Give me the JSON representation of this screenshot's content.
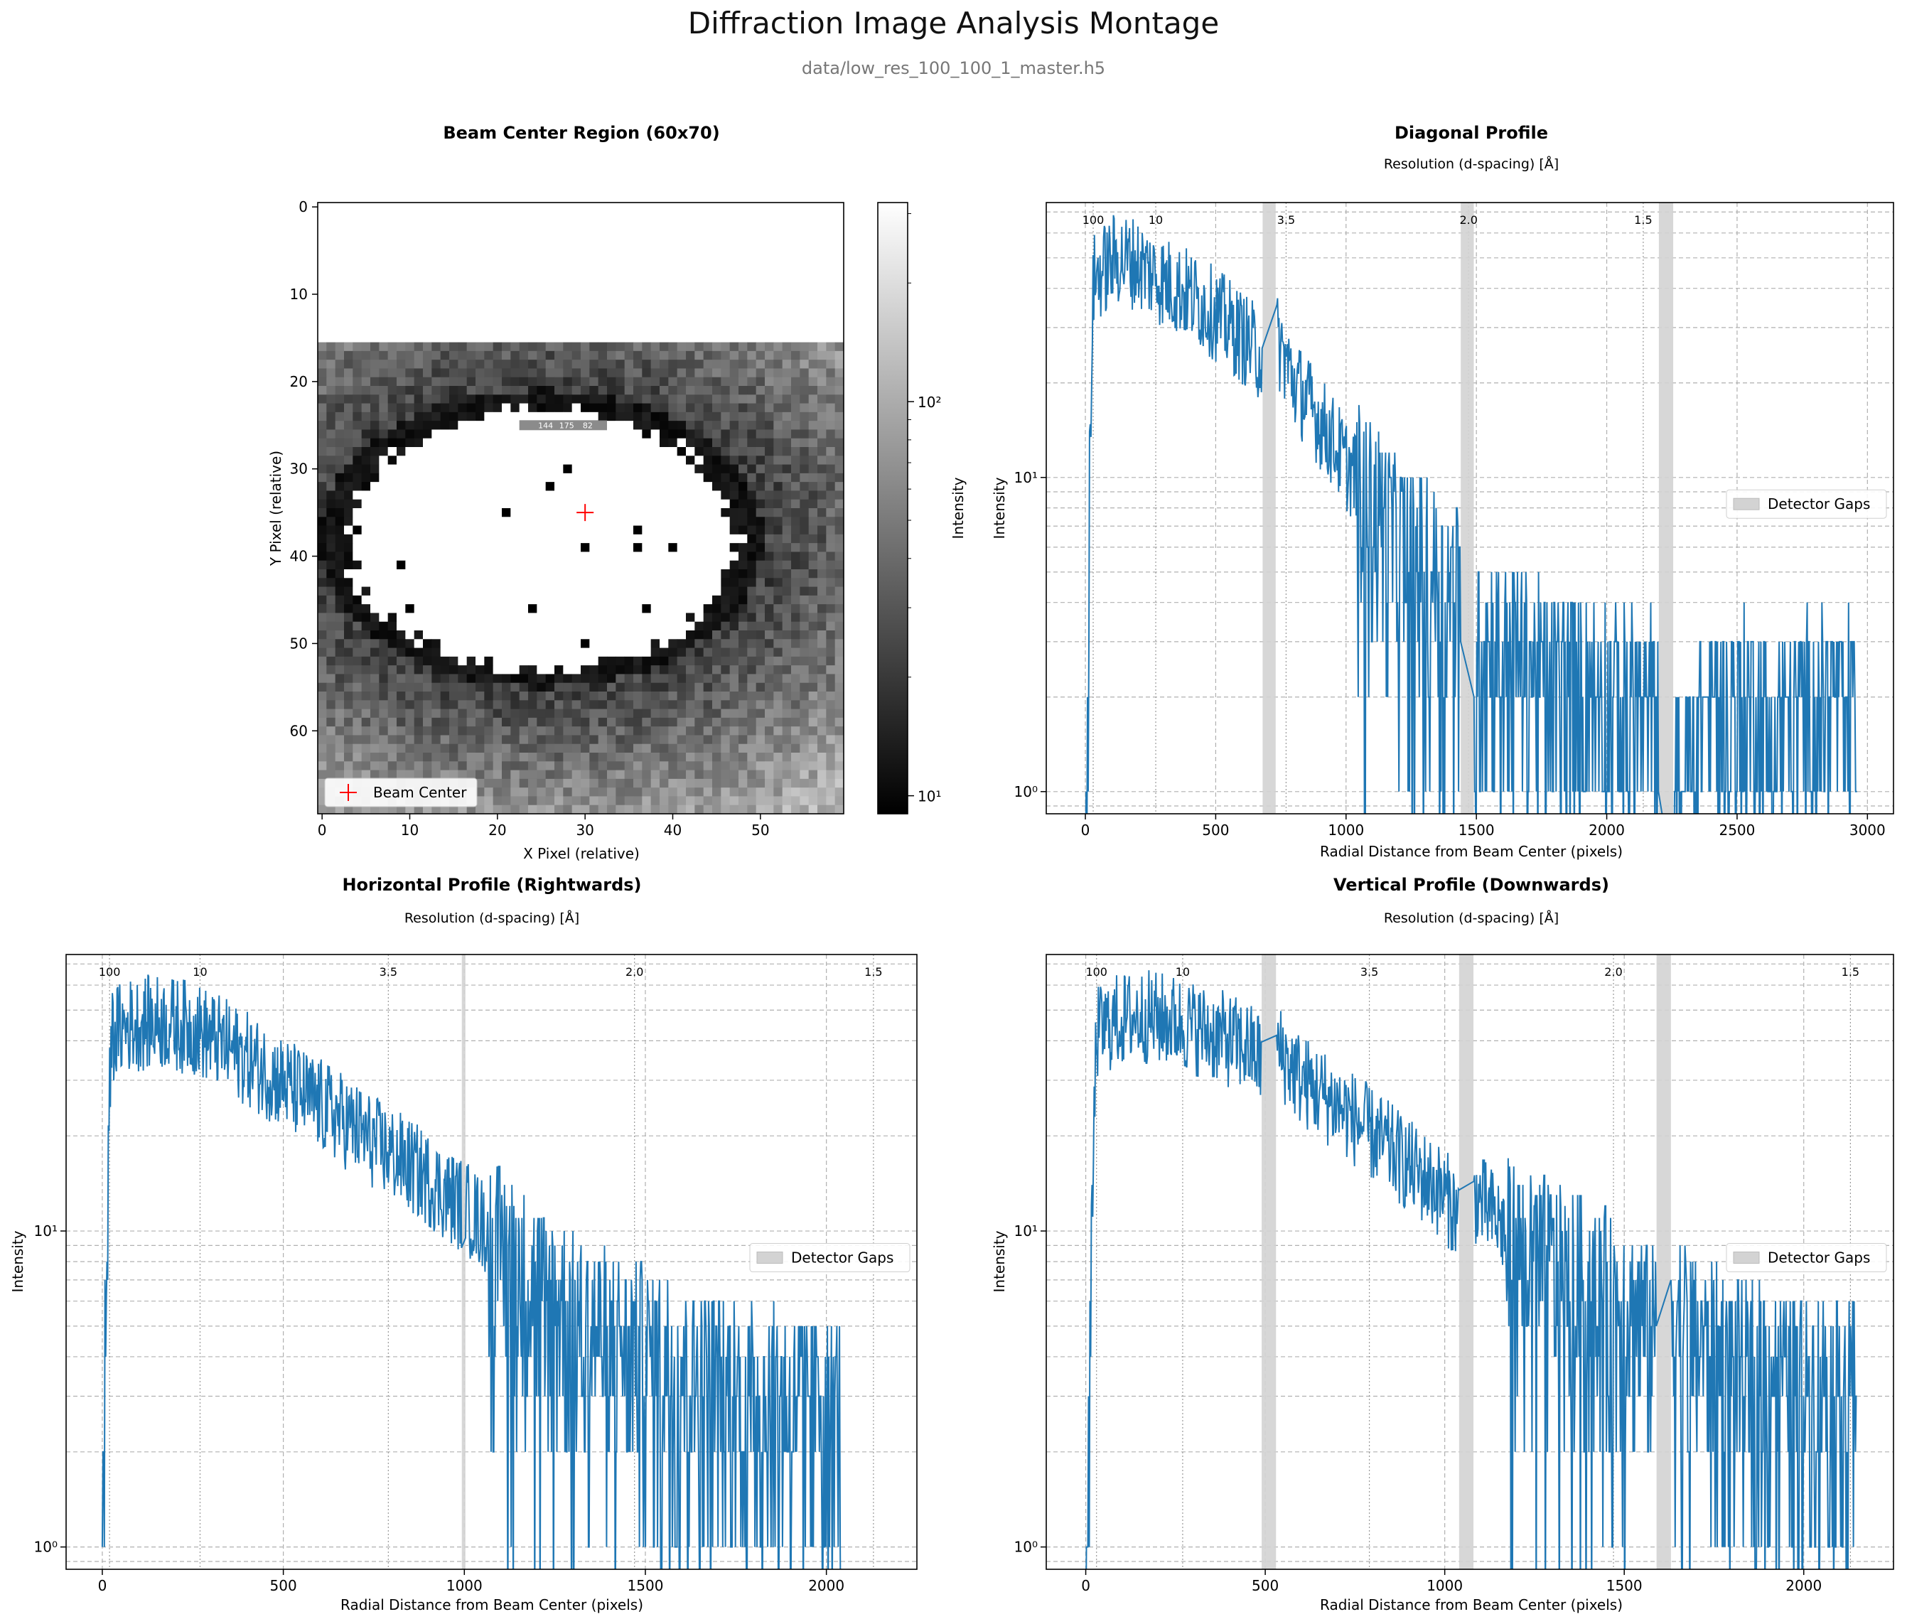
{
  "figure": {
    "title": "Diffraction Image Analysis Montage",
    "subtitle": "data/low_res_100_100_1_master.h5"
  },
  "colors": {
    "line": "#1f77b4",
    "gap": "#d3d3d3",
    "grid": "#b0b0b0",
    "marker": "#ff0000"
  },
  "chart_data": [
    {
      "type": "heatmap",
      "title": "Beam Center Region (60x70)",
      "xlabel": "X Pixel (relative)",
      "ylabel": "Y Pixel (relative)",
      "xlim": [
        -0.5,
        59.5
      ],
      "ylim": [
        69.5,
        -0.5
      ],
      "xticks": [
        0,
        10,
        20,
        30,
        40,
        50
      ],
      "yticks": [
        0,
        10,
        20,
        30,
        40,
        50,
        60
      ],
      "colormap": "gray",
      "colorbar": {
        "label": "Intensity",
        "scale": "log",
        "range": [
          9,
          320
        ],
        "ticks": [
          10,
          100
        ],
        "tick_labels": [
          "10¹",
          "10²"
        ]
      },
      "masked_rows": [
        0,
        15
      ],
      "saturated_region": {
        "center": [
          25,
          38
        ],
        "semi_axes": [
          23,
          15.5
        ]
      },
      "beam_center": {
        "x": 30,
        "y": 35,
        "label": "Beam Center"
      },
      "pixel_annotations": [
        "144",
        "175",
        "82"
      ],
      "legend": "lower-left"
    },
    {
      "type": "line",
      "title": "Diagonal Profile",
      "top_label": "Resolution (d-spacing) [Å]",
      "xlabel": "Radial Distance from Beam Center (pixels)",
      "ylabel": "Intensity",
      "yscale": "log",
      "xlim": [
        -150,
        3100
      ],
      "ylim": [
        0.85,
        75
      ],
      "xticks": [
        0,
        500,
        1000,
        1500,
        2000,
        2500,
        3000
      ],
      "x_max": 2960,
      "resolution_marks": [
        {
          "label": "100",
          "x": 30
        },
        {
          "label": "10",
          "x": 270
        },
        {
          "label": "3.5",
          "x": 770
        },
        {
          "label": "2.0",
          "x": 1470
        },
        {
          "label": "1.5",
          "x": 2140
        }
      ],
      "gaps": [
        [
          680,
          730
        ],
        [
          1440,
          1490
        ],
        [
          2200,
          2255
        ]
      ],
      "legend_label": "Detector Gaps",
      "legend": "center-right",
      "profile_points": [
        [
          0,
          0.5
        ],
        [
          10,
          2
        ],
        [
          20,
          12
        ],
        [
          30,
          42
        ],
        [
          60,
          45
        ],
        [
          120,
          50
        ],
        [
          200,
          48
        ],
        [
          300,
          42
        ],
        [
          400,
          38
        ],
        [
          500,
          33
        ],
        [
          600,
          28
        ],
        [
          680,
          24
        ],
        [
          730,
          28
        ],
        [
          800,
          20
        ],
        [
          900,
          15
        ],
        [
          1000,
          11
        ],
        [
          1100,
          8.5
        ],
        [
          1200,
          6.5
        ],
        [
          1300,
          5.5
        ],
        [
          1400,
          4.5
        ],
        [
          1440,
          4.5
        ],
        [
          1490,
          3
        ],
        [
          1600,
          3
        ],
        [
          1800,
          2.4
        ],
        [
          2000,
          2.2
        ],
        [
          2200,
          2
        ],
        [
          2255,
          1
        ],
        [
          2400,
          2
        ],
        [
          2600,
          2
        ],
        [
          2800,
          2
        ],
        [
          2960,
          2
        ]
      ]
    },
    {
      "type": "line",
      "title": "Horizontal Profile (Rightwards)",
      "top_label": "Resolution (d-spacing) [Å]",
      "xlabel": "Radial Distance from Beam Center (pixels)",
      "ylabel": "Intensity",
      "yscale": "log",
      "xlim": [
        -100,
        2250
      ],
      "ylim": [
        0.85,
        75
      ],
      "xticks": [
        0,
        500,
        1000,
        1500,
        2000
      ],
      "x_max": 2040,
      "resolution_marks": [
        {
          "label": "100",
          "x": 20
        },
        {
          "label": "10",
          "x": 270
        },
        {
          "label": "3.5",
          "x": 790
        },
        {
          "label": "2.0",
          "x": 1470
        },
        {
          "label": "1.5",
          "x": 2130
        }
      ],
      "gaps": [
        [
          993,
          1003
        ]
      ],
      "legend_label": "Detector Gaps",
      "legend": "center-right",
      "profile_points": [
        [
          0,
          0.5
        ],
        [
          5,
          2
        ],
        [
          15,
          10
        ],
        [
          25,
          42
        ],
        [
          80,
          45
        ],
        [
          150,
          46
        ],
        [
          250,
          44
        ],
        [
          350,
          38
        ],
        [
          450,
          32
        ],
        [
          550,
          27
        ],
        [
          650,
          23
        ],
        [
          750,
          19
        ],
        [
          850,
          16
        ],
        [
          950,
          13
        ],
        [
          1000,
          12
        ],
        [
          1100,
          9
        ],
        [
          1200,
          7
        ],
        [
          1300,
          5.5
        ],
        [
          1400,
          4.8
        ],
        [
          1500,
          4.2
        ],
        [
          1600,
          3.8
        ],
        [
          1700,
          3.5
        ],
        [
          1800,
          3.2
        ],
        [
          1900,
          3
        ],
        [
          2040,
          3
        ]
      ]
    },
    {
      "type": "line",
      "title": "Vertical Profile (Downwards)",
      "top_label": "Resolution (d-spacing) [Å]",
      "xlabel": "Radial Distance from Beam Center (pixels)",
      "ylabel": "Intensity",
      "yscale": "log",
      "xlim": [
        -110,
        2250
      ],
      "ylim": [
        0.85,
        75
      ],
      "xticks": [
        0,
        500,
        1000,
        1500,
        2000
      ],
      "x_max": 2150,
      "resolution_marks": [
        {
          "label": "100",
          "x": 30
        },
        {
          "label": "10",
          "x": 270
        },
        {
          "label": "3.5",
          "x": 790
        },
        {
          "label": "2.0",
          "x": 1470
        },
        {
          "label": "1.5",
          "x": 2130
        }
      ],
      "gaps": [
        [
          490,
          530
        ],
        [
          1040,
          1080
        ],
        [
          1590,
          1630
        ]
      ],
      "legend_label": "Detector Gaps",
      "legend": "center-right",
      "profile_points": [
        [
          0,
          0.5
        ],
        [
          10,
          2
        ],
        [
          20,
          12
        ],
        [
          30,
          42
        ],
        [
          80,
          46
        ],
        [
          150,
          48
        ],
        [
          250,
          46
        ],
        [
          350,
          42
        ],
        [
          450,
          38
        ],
        [
          490,
          35
        ],
        [
          530,
          38
        ],
        [
          600,
          30
        ],
        [
          700,
          25
        ],
        [
          800,
          20
        ],
        [
          900,
          16
        ],
        [
          1000,
          13
        ],
        [
          1040,
          11
        ],
        [
          1080,
          13
        ],
        [
          1200,
          9
        ],
        [
          1300,
          8
        ],
        [
          1400,
          7
        ],
        [
          1500,
          6
        ],
        [
          1590,
          5
        ],
        [
          1630,
          6
        ],
        [
          1700,
          4.5
        ],
        [
          1800,
          4
        ],
        [
          1900,
          3.8
        ],
        [
          2000,
          3.5
        ],
        [
          2150,
          3.5
        ]
      ]
    }
  ]
}
